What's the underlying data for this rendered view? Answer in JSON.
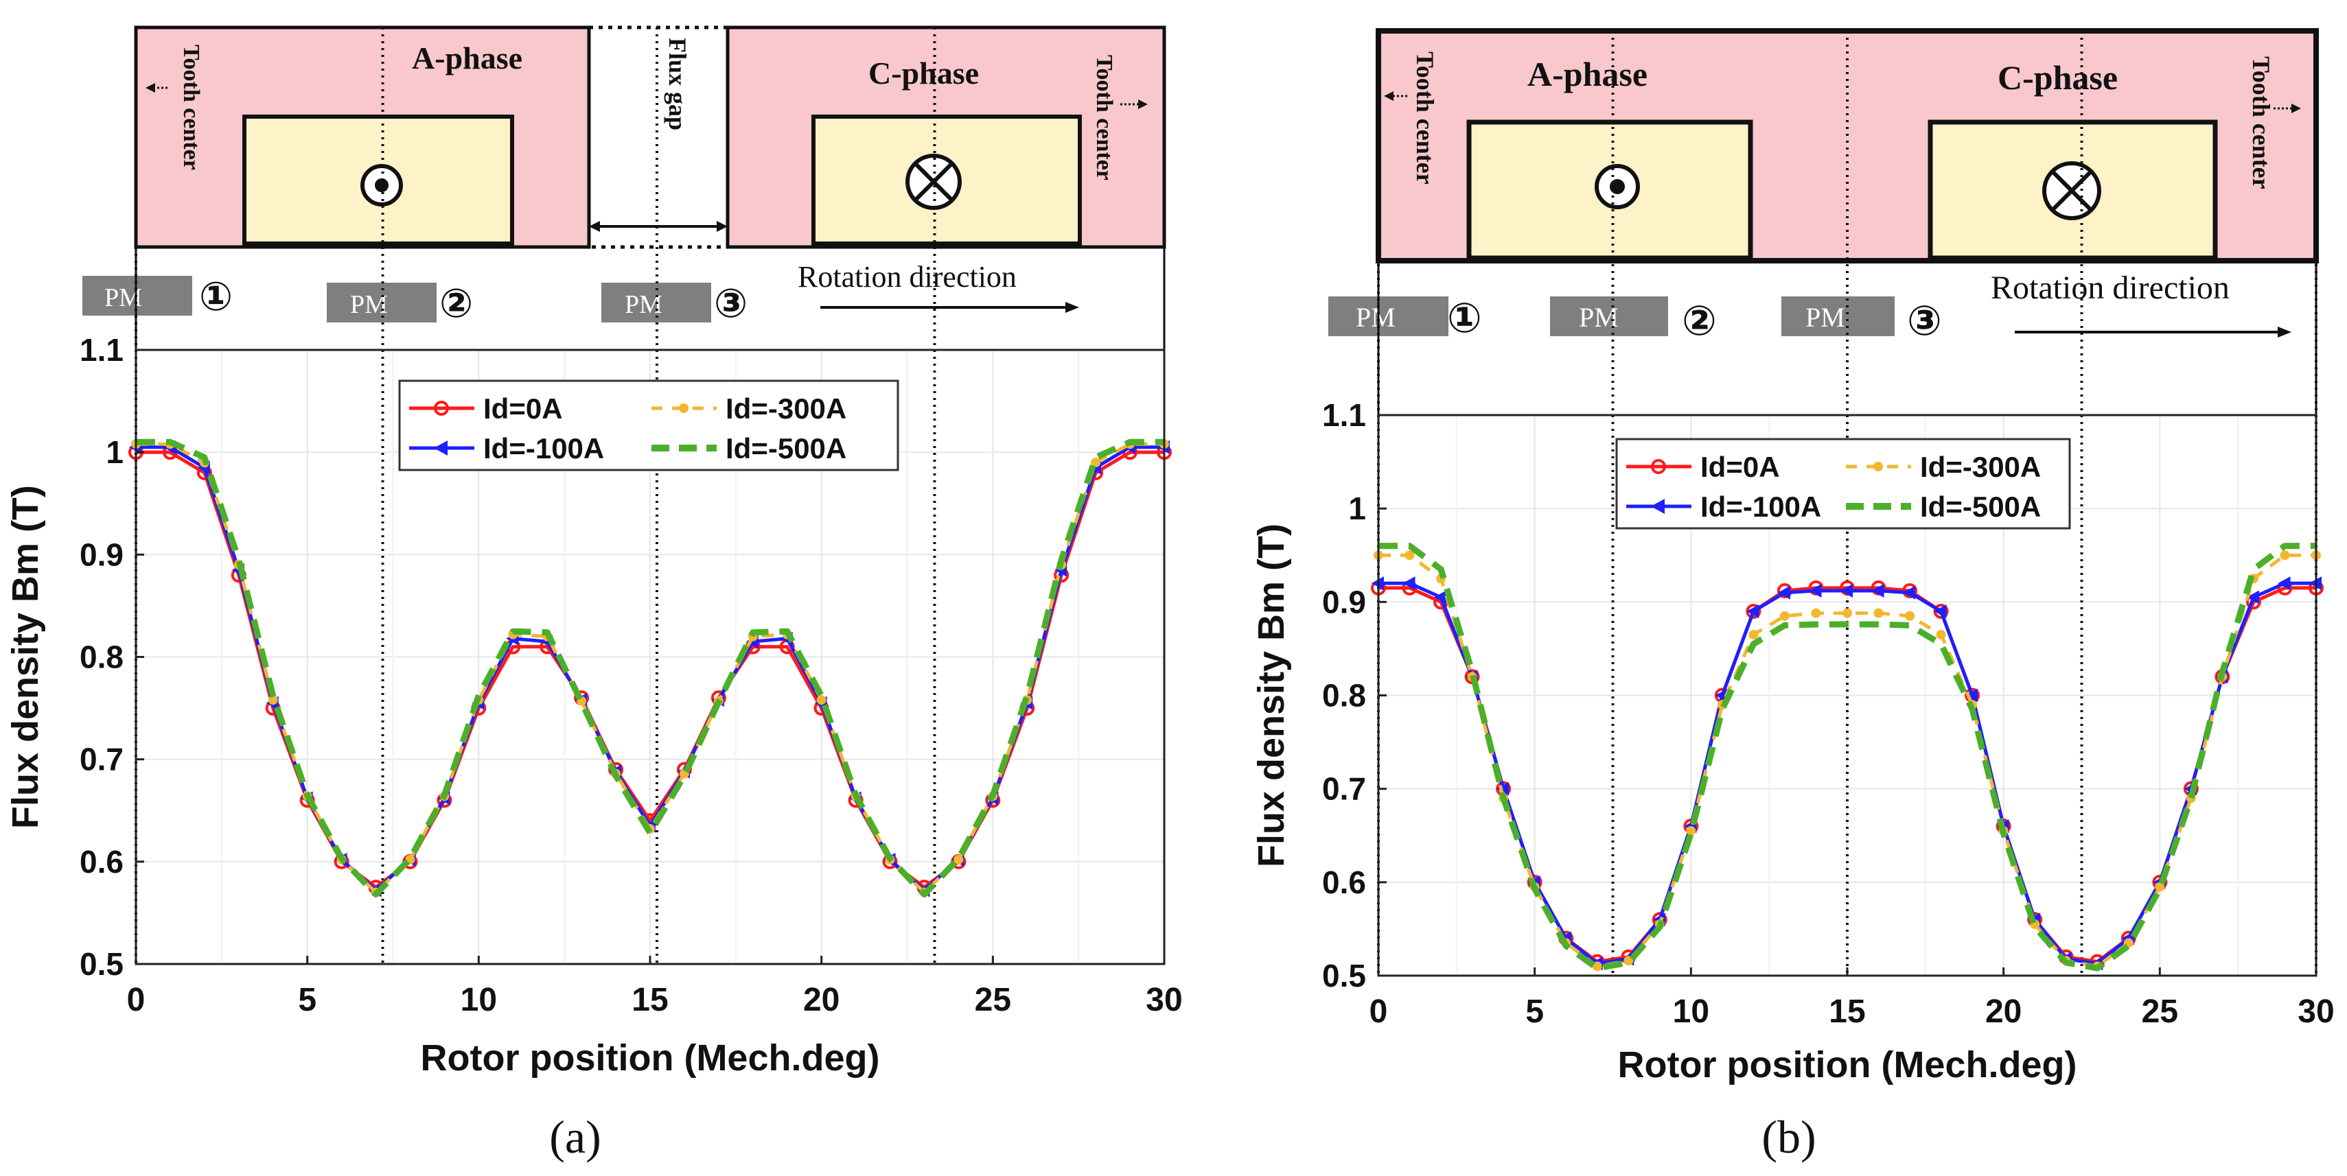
{
  "figure": {
    "panel_labels": [
      "(a)",
      "(b)"
    ]
  },
  "diagram_a": {
    "phase_left": "A-phase",
    "phase_right": "C-phase",
    "tooth_center": "Tooth center",
    "flux_gap": "Flux gap",
    "rotation": "Rotation direction",
    "pm_label": "PM",
    "pm_numbers": [
      "①",
      "②",
      "③"
    ]
  },
  "diagram_b": {
    "phase_left": "A-phase",
    "phase_right": "C-phase",
    "tooth_center": "Tooth center",
    "rotation": "Rotation direction",
    "pm_label": "PM",
    "pm_numbers": [
      "①",
      "②",
      "③"
    ]
  },
  "colors": {
    "series": [
      "#ff1a1a",
      "#1f1fff",
      "#f2b730",
      "#4caf2a"
    ],
    "stator": "#f8c8cc",
    "coil": "#fdf2c8",
    "pm": "#7f7f7f",
    "grid": "#e6e6e6"
  },
  "chart_data": [
    {
      "type": "line",
      "panel": "(a)",
      "title": "",
      "xlabel": "Rotor position (Mech.deg)",
      "ylabel": "Flux density Bm (T)",
      "xlim": [
        0,
        30
      ],
      "ylim": [
        0.5,
        1.1
      ],
      "xticks": [
        0,
        5,
        10,
        15,
        20,
        25,
        30
      ],
      "yticks": [
        0.5,
        0.6,
        0.7,
        0.8,
        0.9,
        1,
        1.1
      ],
      "legend_position": "top-center",
      "grid": true,
      "x": [
        0,
        1,
        2,
        3,
        4,
        5,
        6,
        7,
        8,
        9,
        10,
        11,
        12,
        13,
        14,
        15,
        16,
        17,
        18,
        19,
        20,
        21,
        22,
        23,
        24,
        25,
        26,
        27,
        28,
        29,
        30
      ],
      "series": [
        {
          "name": "Id=0A",
          "marker": "circle",
          "values": [
            1.0,
            1.0,
            0.98,
            0.88,
            0.75,
            0.66,
            0.6,
            0.575,
            0.6,
            0.66,
            0.75,
            0.81,
            0.81,
            0.76,
            0.69,
            0.64,
            0.69,
            0.76,
            0.81,
            0.81,
            0.75,
            0.66,
            0.6,
            0.575,
            0.6,
            0.66,
            0.75,
            0.88,
            0.98,
            1.0,
            1.0
          ]
        },
        {
          "name": "Id=-100A",
          "marker": "triangle-left",
          "values": [
            1.005,
            1.005,
            0.985,
            0.885,
            0.755,
            0.662,
            0.602,
            0.572,
            0.602,
            0.662,
            0.755,
            0.818,
            0.815,
            0.758,
            0.688,
            0.635,
            0.688,
            0.758,
            0.815,
            0.818,
            0.755,
            0.662,
            0.602,
            0.572,
            0.602,
            0.662,
            0.755,
            0.885,
            0.985,
            1.005,
            1.005
          ]
        },
        {
          "name": "Id=-300A",
          "marker": "dot-dash",
          "values": [
            1.008,
            1.008,
            0.99,
            0.89,
            0.758,
            0.664,
            0.602,
            0.57,
            0.602,
            0.664,
            0.758,
            0.822,
            0.82,
            0.757,
            0.686,
            0.632,
            0.686,
            0.757,
            0.82,
            0.822,
            0.758,
            0.664,
            0.602,
            0.57,
            0.602,
            0.664,
            0.758,
            0.89,
            0.99,
            1.008,
            1.008
          ]
        },
        {
          "name": "Id=-500A",
          "marker": "dash",
          "values": [
            1.01,
            1.01,
            0.995,
            0.895,
            0.762,
            0.665,
            0.603,
            0.568,
            0.603,
            0.665,
            0.762,
            0.825,
            0.824,
            0.756,
            0.684,
            0.628,
            0.684,
            0.756,
            0.824,
            0.825,
            0.762,
            0.665,
            0.603,
            0.568,
            0.603,
            0.665,
            0.762,
            0.895,
            0.995,
            1.01,
            1.01
          ]
        }
      ]
    },
    {
      "type": "line",
      "panel": "(b)",
      "title": "",
      "xlabel": "Rotor position (Mech.deg)",
      "ylabel": "Flux density Bm (T)",
      "xlim": [
        0,
        30
      ],
      "ylim": [
        0.5,
        1.1
      ],
      "xticks": [
        0,
        5,
        10,
        15,
        20,
        25,
        30
      ],
      "yticks": [
        0.5,
        0.6,
        0.7,
        0.8,
        0.9,
        1,
        1.1
      ],
      "legend_position": "top-center",
      "grid": true,
      "x": [
        0,
        1,
        2,
        3,
        4,
        5,
        6,
        7,
        8,
        9,
        10,
        11,
        12,
        13,
        14,
        15,
        16,
        17,
        18,
        19,
        20,
        21,
        22,
        23,
        24,
        25,
        26,
        27,
        28,
        29,
        30
      ],
      "series": [
        {
          "name": "Id=0A",
          "marker": "circle",
          "values": [
            0.915,
            0.915,
            0.9,
            0.82,
            0.7,
            0.6,
            0.54,
            0.515,
            0.52,
            0.56,
            0.66,
            0.8,
            0.89,
            0.912,
            0.915,
            0.915,
            0.915,
            0.912,
            0.89,
            0.8,
            0.66,
            0.56,
            0.52,
            0.515,
            0.54,
            0.6,
            0.7,
            0.82,
            0.9,
            0.915,
            0.915
          ]
        },
        {
          "name": "Id=-100A",
          "marker": "triangle-left",
          "values": [
            0.92,
            0.92,
            0.905,
            0.82,
            0.7,
            0.6,
            0.54,
            0.513,
            0.518,
            0.56,
            0.66,
            0.8,
            0.89,
            0.91,
            0.912,
            0.912,
            0.912,
            0.91,
            0.89,
            0.8,
            0.66,
            0.56,
            0.518,
            0.513,
            0.54,
            0.6,
            0.7,
            0.82,
            0.905,
            0.92,
            0.92
          ]
        },
        {
          "name": "Id=-300A",
          "marker": "dot-dash",
          "values": [
            0.95,
            0.95,
            0.925,
            0.82,
            0.69,
            0.595,
            0.535,
            0.51,
            0.516,
            0.555,
            0.655,
            0.79,
            0.865,
            0.885,
            0.888,
            0.888,
            0.888,
            0.885,
            0.865,
            0.79,
            0.655,
            0.555,
            0.516,
            0.51,
            0.535,
            0.595,
            0.69,
            0.82,
            0.925,
            0.95,
            0.95
          ]
        },
        {
          "name": "Id=-500A",
          "marker": "dash",
          "values": [
            0.96,
            0.96,
            0.935,
            0.825,
            0.69,
            0.593,
            0.532,
            0.508,
            0.514,
            0.552,
            0.652,
            0.785,
            0.855,
            0.875,
            0.876,
            0.876,
            0.876,
            0.875,
            0.855,
            0.785,
            0.652,
            0.552,
            0.514,
            0.508,
            0.532,
            0.593,
            0.69,
            0.825,
            0.935,
            0.96,
            0.96
          ]
        }
      ]
    }
  ]
}
